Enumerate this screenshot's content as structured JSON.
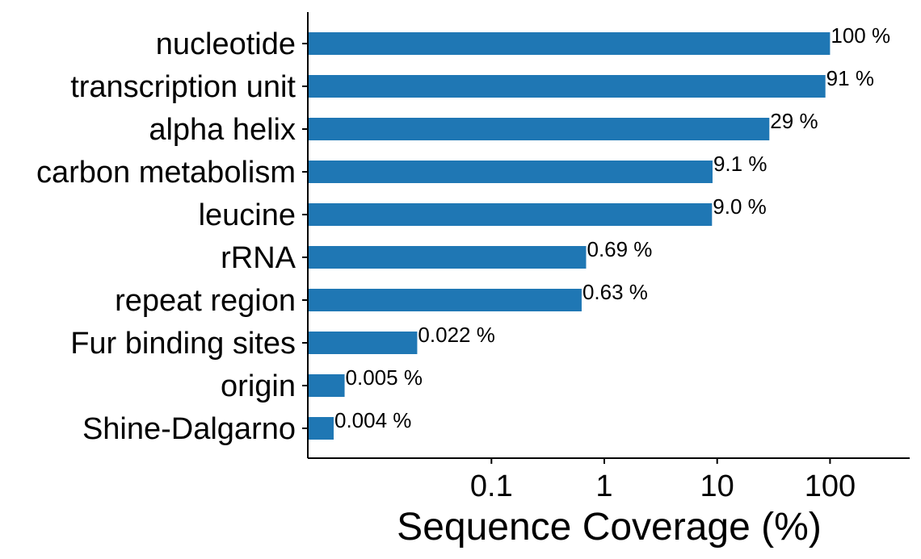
{
  "chart_data": {
    "type": "bar",
    "orientation": "horizontal",
    "xscale": "log",
    "xlabel": "Sequence Coverage (%)",
    "ylabel": "",
    "title": "",
    "xlim": [
      0.002,
      500
    ],
    "xticks": [
      0.1,
      1,
      10,
      100
    ],
    "xtick_labels": [
      "0.1",
      "1",
      "10",
      "100"
    ],
    "grid": false,
    "bar_color": "#1f77b4",
    "categories": [
      "nucleotide",
      "transcription unit",
      "alpha helix",
      "carbon metabolism",
      "leucine",
      "rRNA",
      "repeat region",
      "Fur binding sites",
      "origin",
      "Shine-Dalgarno"
    ],
    "values": [
      100,
      91,
      29,
      9.1,
      9.0,
      0.69,
      0.63,
      0.022,
      0.005,
      0.004
    ],
    "value_labels": [
      "100 %",
      "91 %",
      "29 %",
      "9.1 %",
      "9.0 %",
      "0.69 %",
      "0.63 %",
      "0.022 %",
      "0.005 %",
      "0.004 %"
    ]
  }
}
